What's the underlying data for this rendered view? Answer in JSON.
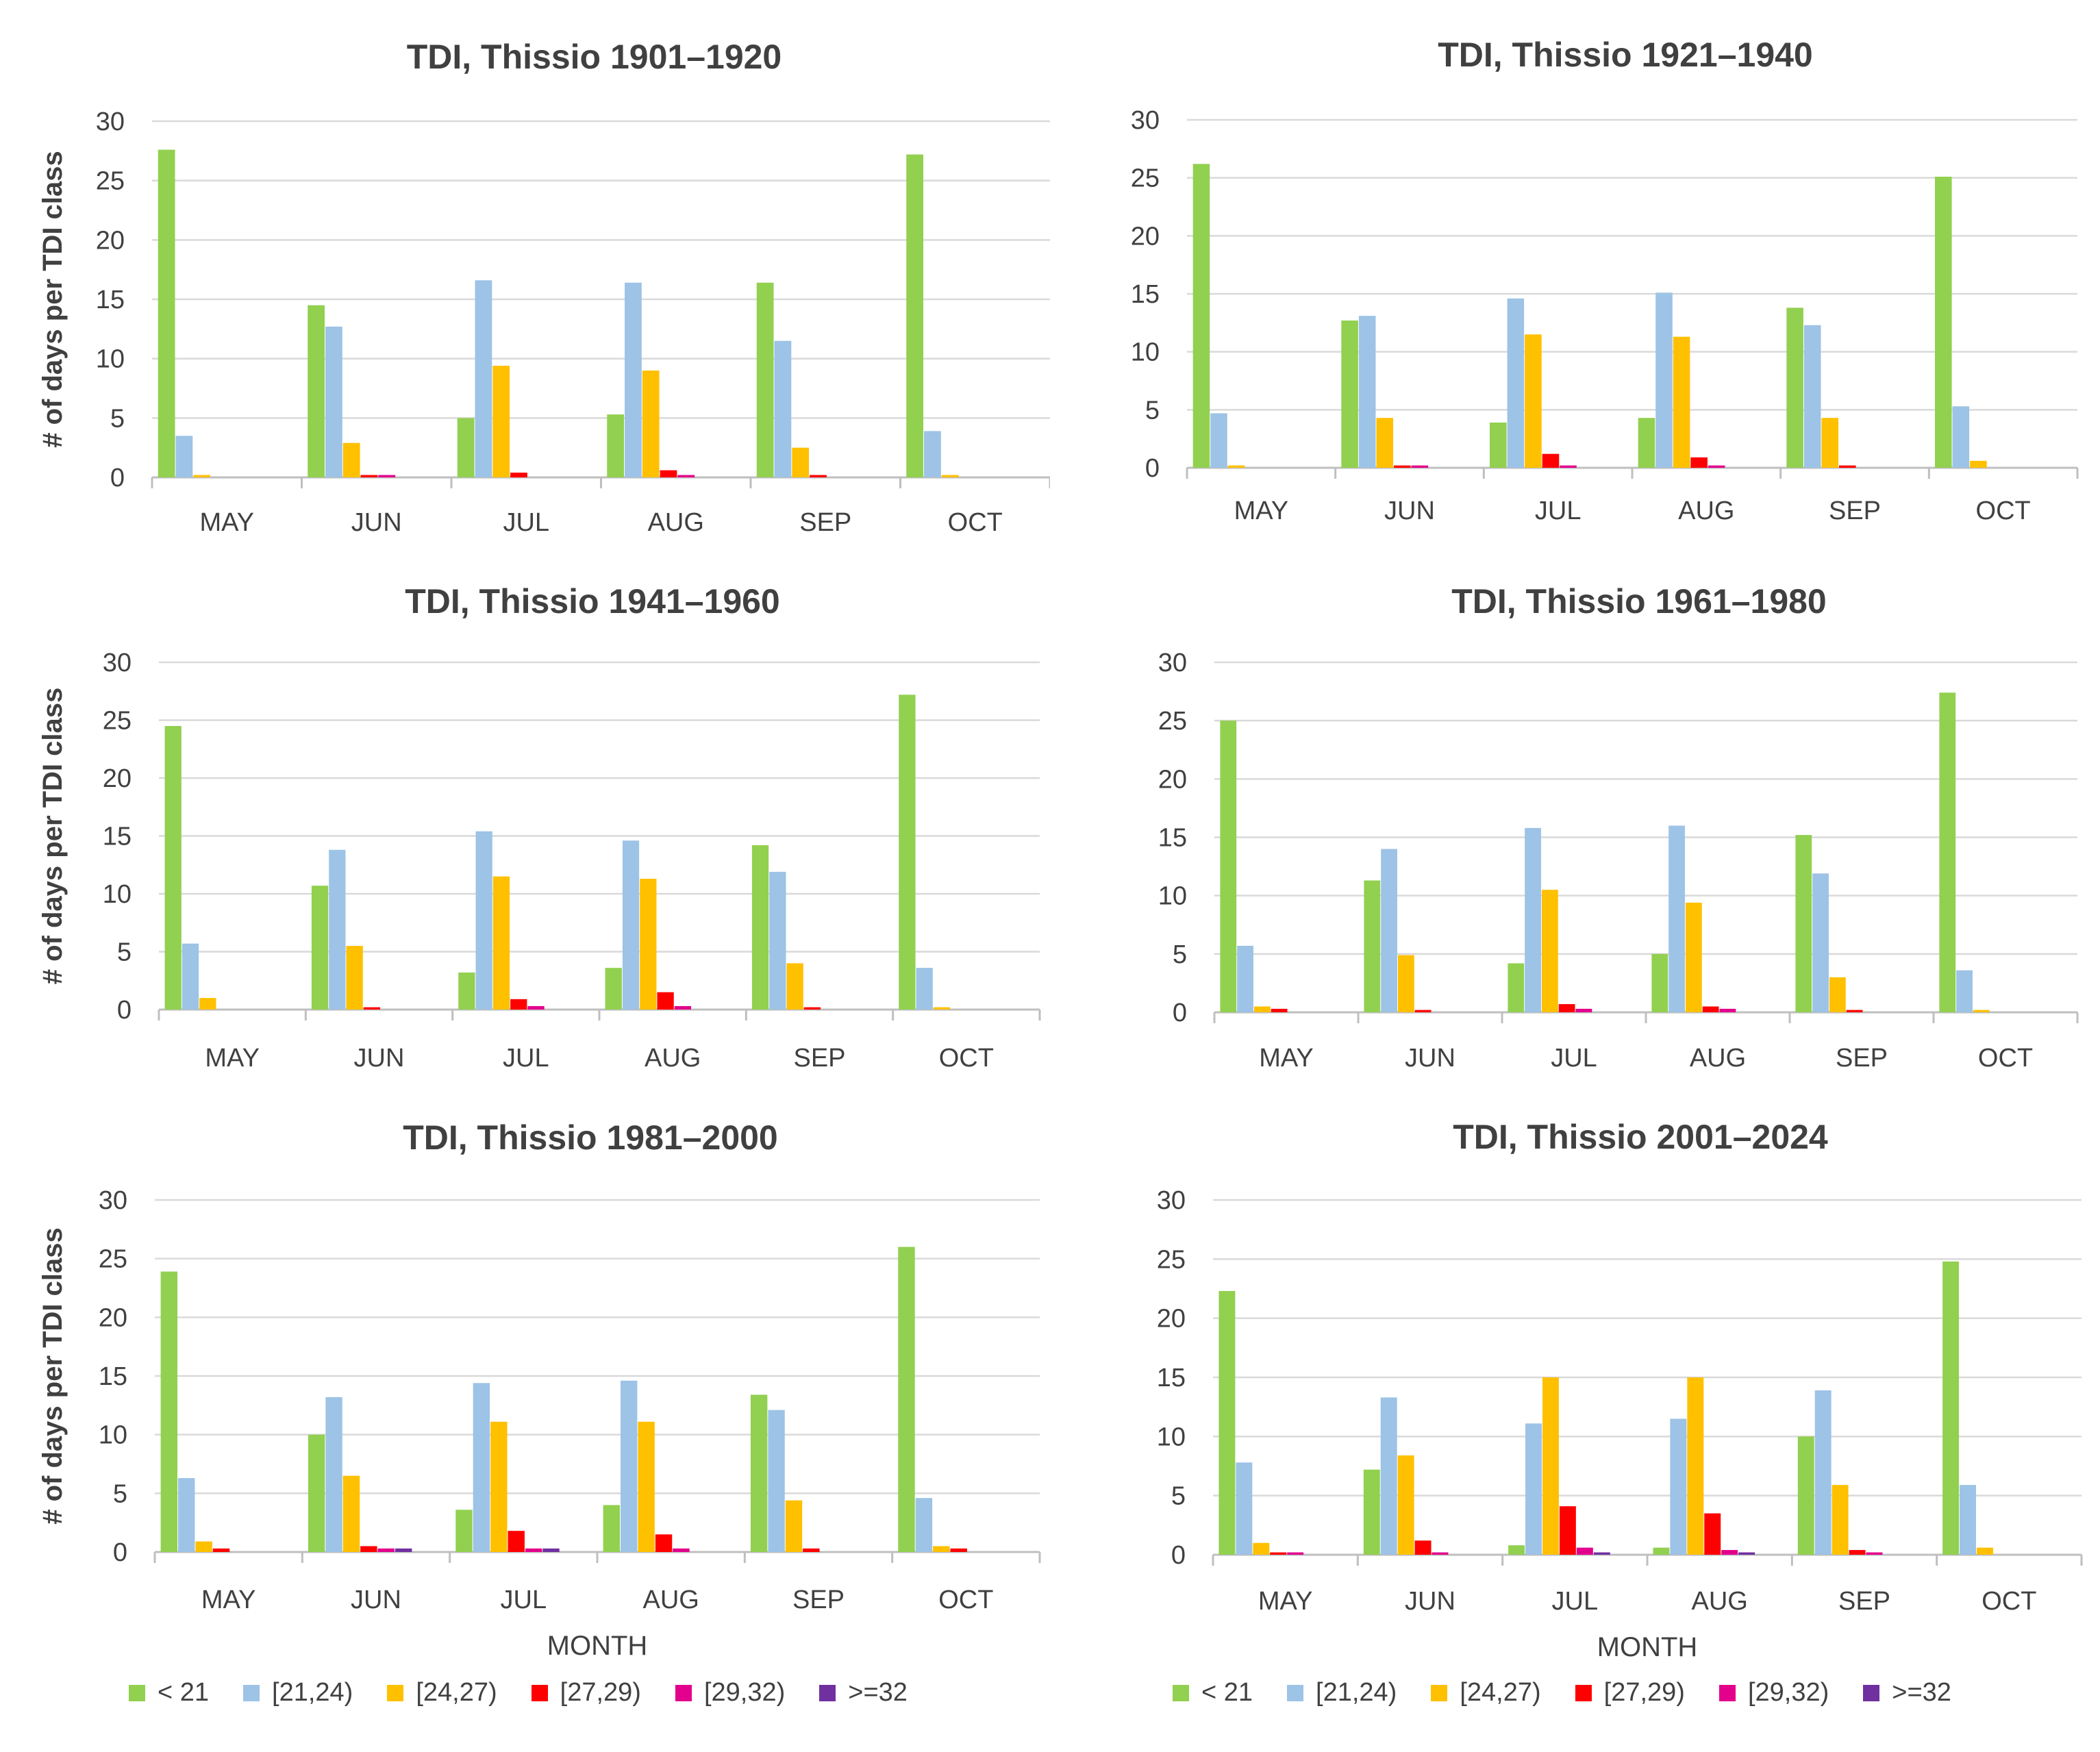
{
  "chart_data": [
    {
      "type": "bar",
      "title": "TDI, Thissio 1901–1920",
      "xlabel": "",
      "ylabel": "# of days per TDI class",
      "ylim": [
        0,
        30
      ],
      "yticks": [
        "0",
        "5",
        "10",
        "15",
        "20",
        "25",
        "30"
      ],
      "categories": [
        "MAY",
        "JUN",
        "JUL",
        "AUG",
        "SEP",
        "OCT"
      ],
      "series": [
        {
          "name": "< 21",
          "values": [
            27.6,
            14.5,
            5.0,
            5.3,
            16.4,
            27.2
          ]
        },
        {
          "name": "[21,24)",
          "values": [
            3.5,
            12.7,
            16.6,
            16.4,
            11.5,
            3.9
          ]
        },
        {
          "name": "[24,27)",
          "values": [
            0.2,
            2.9,
            9.4,
            9.0,
            2.5,
            0.2
          ]
        },
        {
          "name": "[27,29)",
          "values": [
            0,
            0.2,
            0.4,
            0.6,
            0.2,
            0
          ]
        },
        {
          "name": "[29,32)",
          "values": [
            0,
            0.2,
            0,
            0.2,
            0,
            0
          ]
        },
        {
          "name": ">=32",
          "values": [
            0,
            0,
            0,
            0,
            0,
            0
          ]
        }
      ]
    },
    {
      "type": "bar",
      "title": "TDI, Thissio 1921–1940",
      "xlabel": "",
      "ylabel": "",
      "ylim": [
        0,
        30
      ],
      "yticks": [
        "0",
        "5",
        "10",
        "15",
        "20",
        "25",
        "30"
      ],
      "categories": [
        "MAY",
        "JUN",
        "JUL",
        "AUG",
        "SEP",
        "OCT"
      ],
      "series": [
        {
          "name": "< 21",
          "values": [
            26.2,
            12.7,
            3.9,
            4.3,
            13.8,
            25.1
          ]
        },
        {
          "name": "[21,24)",
          "values": [
            4.7,
            13.1,
            14.6,
            15.1,
            12.3,
            5.3
          ]
        },
        {
          "name": "[24,27)",
          "values": [
            0.2,
            4.3,
            11.5,
            11.3,
            4.3,
            0.6
          ]
        },
        {
          "name": "[27,29)",
          "values": [
            0,
            0.2,
            1.2,
            0.9,
            0.2,
            0
          ]
        },
        {
          "name": "[29,32)",
          "values": [
            0,
            0.2,
            0.2,
            0.2,
            0,
            0
          ]
        },
        {
          "name": ">=32",
          "values": [
            0,
            0,
            0,
            0,
            0,
            0
          ]
        }
      ]
    },
    {
      "type": "bar",
      "title": "TDI, Thissio 1941–1960",
      "xlabel": "",
      "ylabel": "# of days per TDI class",
      "ylim": [
        0,
        30
      ],
      "yticks": [
        "0",
        "5",
        "10",
        "15",
        "20",
        "25",
        "30"
      ],
      "categories": [
        "MAY",
        "JUN",
        "JUL",
        "AUG",
        "SEP",
        "OCT"
      ],
      "series": [
        {
          "name": "< 21",
          "values": [
            24.5,
            10.7,
            3.2,
            3.6,
            14.2,
            27.2
          ]
        },
        {
          "name": "[21,24)",
          "values": [
            5.7,
            13.8,
            15.4,
            14.6,
            11.9,
            3.6
          ]
        },
        {
          "name": "[24,27)",
          "values": [
            1.0,
            5.5,
            11.5,
            11.3,
            4.0,
            0.2
          ]
        },
        {
          "name": "[27,29)",
          "values": [
            0,
            0.2,
            0.9,
            1.5,
            0.2,
            0
          ]
        },
        {
          "name": "[29,32)",
          "values": [
            0,
            0,
            0.3,
            0.3,
            0,
            0
          ]
        },
        {
          "name": ">=32",
          "values": [
            0,
            0,
            0,
            0,
            0,
            0
          ]
        }
      ]
    },
    {
      "type": "bar",
      "title": "TDI, Thissio 1961–1980",
      "xlabel": "",
      "ylabel": "",
      "ylim": [
        0,
        30
      ],
      "yticks": [
        "0",
        "5",
        "10",
        "15",
        "20",
        "25",
        "30"
      ],
      "categories": [
        "MAY",
        "JUN",
        "JUL",
        "AUG",
        "SEP",
        "OCT"
      ],
      "series": [
        {
          "name": "< 21",
          "values": [
            25.0,
            11.3,
            4.2,
            5.0,
            15.2,
            27.4
          ]
        },
        {
          "name": "[21,24)",
          "values": [
            5.7,
            14.0,
            15.8,
            16.0,
            11.9,
            3.6
          ]
        },
        {
          "name": "[24,27)",
          "values": [
            0.5,
            4.9,
            10.5,
            9.4,
            3.0,
            0.2
          ]
        },
        {
          "name": "[27,29)",
          "values": [
            0.3,
            0.2,
            0.7,
            0.5,
            0.2,
            0
          ]
        },
        {
          "name": "[29,32)",
          "values": [
            0,
            0,
            0.3,
            0.3,
            0,
            0
          ]
        },
        {
          "name": ">=32",
          "values": [
            0,
            0,
            0,
            0,
            0,
            0
          ]
        }
      ]
    },
    {
      "type": "bar",
      "title": "TDI, Thissio 1981–2000",
      "xlabel": "MONTH",
      "ylabel": "# of days per TDI class",
      "ylim": [
        0,
        30
      ],
      "yticks": [
        "0",
        "5",
        "10",
        "15",
        "20",
        "25",
        "30"
      ],
      "categories": [
        "MAY",
        "JUN",
        "JUL",
        "AUG",
        "SEP",
        "OCT"
      ],
      "series": [
        {
          "name": "< 21",
          "values": [
            23.9,
            10.0,
            3.6,
            4.0,
            13.4,
            26.0
          ]
        },
        {
          "name": "[21,24)",
          "values": [
            6.3,
            13.2,
            14.4,
            14.6,
            12.1,
            4.6
          ]
        },
        {
          "name": "[24,27)",
          "values": [
            0.9,
            6.5,
            11.1,
            11.1,
            4.4,
            0.5
          ]
        },
        {
          "name": "[27,29)",
          "values": [
            0.3,
            0.5,
            1.8,
            1.5,
            0.3,
            0.3
          ]
        },
        {
          "name": "[29,32)",
          "values": [
            0,
            0.3,
            0.3,
            0.3,
            0,
            0
          ]
        },
        {
          "name": ">=32",
          "values": [
            0,
            0.3,
            0.3,
            0,
            0,
            0
          ]
        }
      ]
    },
    {
      "type": "bar",
      "title": "TDI, Thissio 2001–2024",
      "xlabel": "MONTH",
      "ylabel": "",
      "ylim": [
        0,
        30
      ],
      "yticks": [
        "0",
        "5",
        "10",
        "15",
        "20",
        "25",
        "30"
      ],
      "categories": [
        "MAY",
        "JUN",
        "JUL",
        "AUG",
        "SEP",
        "OCT"
      ],
      "series": [
        {
          "name": "< 21",
          "values": [
            22.3,
            7.2,
            0.8,
            0.6,
            10.0,
            24.8
          ]
        },
        {
          "name": "[21,24)",
          "values": [
            7.8,
            13.3,
            11.1,
            11.5,
            13.9,
            5.9
          ]
        },
        {
          "name": "[24,27)",
          "values": [
            1.0,
            8.4,
            15.0,
            15.0,
            5.9,
            0.6
          ]
        },
        {
          "name": "[27,29)",
          "values": [
            0.2,
            1.2,
            4.1,
            3.5,
            0.4,
            0
          ]
        },
        {
          "name": "[29,32)",
          "values": [
            0.2,
            0.2,
            0.6,
            0.4,
            0.2,
            0
          ]
        },
        {
          "name": ">=32",
          "values": [
            0,
            0,
            0.2,
            0.2,
            0,
            0
          ]
        }
      ]
    }
  ],
  "legend": {
    "items": [
      {
        "label": "< 21",
        "color": "#92d050"
      },
      {
        "label": "[21,24)",
        "color": "#9dc3e6"
      },
      {
        "label": "[24,27)",
        "color": "#ffc000"
      },
      {
        "label": "[27,29)",
        "color": "#ff0000"
      },
      {
        "label": "[29,32)",
        "color": "#e3008c"
      },
      {
        "label": ">=32",
        "color": "#7030a0"
      }
    ]
  },
  "colors": {
    "axis": "#bfbfbf",
    "grid": "#d9d9d9",
    "text": "#404040",
    "title": "#404040"
  }
}
